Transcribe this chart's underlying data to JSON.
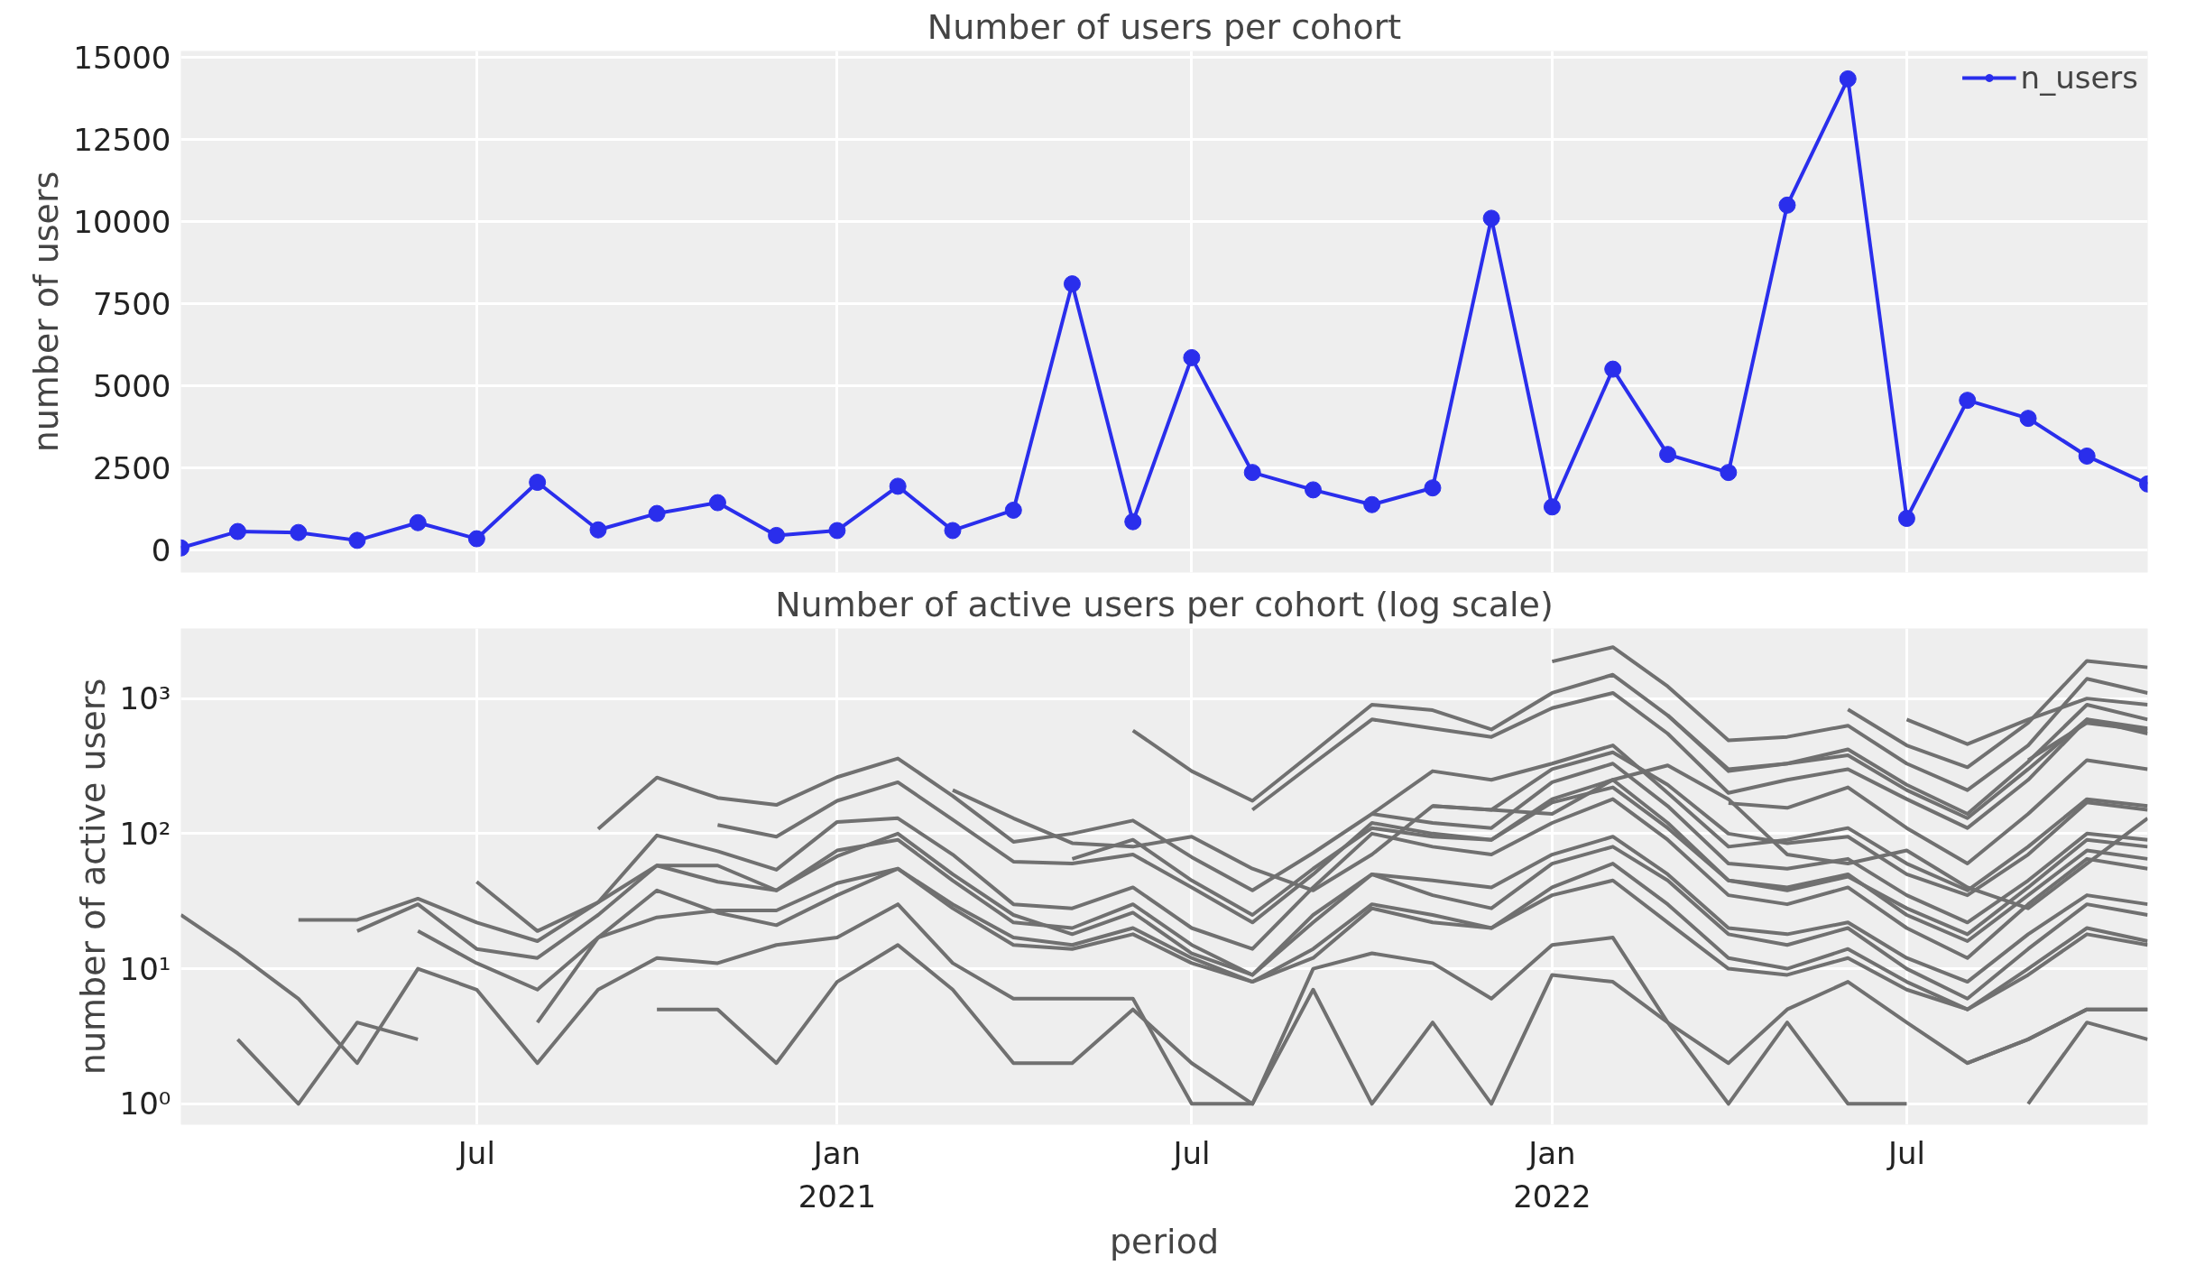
{
  "chart_data": [
    {
      "type": "line",
      "title": "Number of users per cohort",
      "ylabel": "number of users",
      "x": [
        "2020-02",
        "2020-03",
        "2020-04",
        "2020-05",
        "2020-06",
        "2020-07",
        "2020-08",
        "2020-09",
        "2020-10",
        "2020-11",
        "2020-12",
        "2021-01",
        "2021-02",
        "2021-03",
        "2021-04",
        "2021-05",
        "2021-06",
        "2021-07",
        "2021-08",
        "2021-09",
        "2021-10",
        "2021-11",
        "2021-12",
        "2022-01",
        "2022-02",
        "2022-03",
        "2022-04",
        "2022-05",
        "2022-06",
        "2022-07",
        "2022-08",
        "2022-09",
        "2022-10",
        "2022-11"
      ],
      "series": [
        {
          "name": "n_users",
          "color": "#2a2eec",
          "values": [
            50,
            550,
            520,
            280,
            820,
            330,
            2050,
            600,
            1100,
            1430,
            430,
            580,
            1930,
            580,
            1200,
            8100,
            850,
            5850,
            2350,
            1820,
            1370,
            1880,
            10100,
            1300,
            5500,
            2900,
            2350,
            10500,
            14350,
            950,
            4550,
            4000,
            2850,
            2000
          ]
        }
      ],
      "xlim": [
        "2020-02",
        "2022-11"
      ],
      "xticks": [
        {
          "value": "2020-07",
          "label": null
        },
        {
          "value": "2021-01",
          "label": null
        },
        {
          "value": "2021-07",
          "label": null
        },
        {
          "value": "2022-01",
          "label": null
        },
        {
          "value": "2022-07",
          "label": null
        }
      ],
      "ylim": [
        -700,
        15200
      ],
      "yticks": [
        0,
        2500,
        5000,
        7500,
        10000,
        12500,
        15000
      ],
      "tick_labels": "y",
      "grid": true,
      "legend": "top right",
      "marker": "circle",
      "line_style": "solid"
    },
    {
      "type": "line",
      "title": "Number of active users per cohort (log scale)",
      "xlabel": "period",
      "ylabel": "number of active users",
      "x": [
        "2020-02",
        "2020-03",
        "2020-04",
        "2020-05",
        "2020-06",
        "2020-07",
        "2020-08",
        "2020-09",
        "2020-10",
        "2020-11",
        "2020-12",
        "2021-01",
        "2021-02",
        "2021-03",
        "2021-04",
        "2021-05",
        "2021-06",
        "2021-07",
        "2021-08",
        "2021-09",
        "2021-10",
        "2021-11",
        "2021-12",
        "2022-01",
        "2022-02",
        "2022-03",
        "2022-04",
        "2022-05",
        "2022-06",
        "2022-07",
        "2022-08",
        "2022-09",
        "2022-10",
        "2022-11"
      ],
      "series": [
        {
          "color": "#707070",
          "values": [
            25,
            13,
            6,
            2,
            10,
            7,
            2,
            7,
            12,
            11,
            15,
            17,
            30,
            11,
            6,
            6,
            6,
            1,
            1,
            10,
            13,
            11,
            6,
            15,
            17,
            4,
            1,
            4,
            1,
            1,
            null,
            null,
            null,
            null
          ]
        },
        {
          "color": "#707070",
          "values": [
            null,
            3,
            1,
            4,
            3,
            null,
            null,
            null,
            null,
            null,
            null,
            null,
            null,
            null,
            null,
            null,
            null,
            null,
            null,
            null,
            null,
            null,
            null,
            null,
            null,
            null,
            null,
            null,
            null,
            null,
            null,
            null,
            null,
            null
          ]
        },
        {
          "color": "#707070",
          "values": [
            null,
            null,
            23,
            23,
            33,
            22,
            16,
            31,
            58,
            44,
            38,
            75,
            90,
            45,
            22,
            20,
            30,
            15,
            9,
            25,
            50,
            45,
            40,
            70,
            95,
            50,
            20,
            18,
            22,
            12,
            8,
            18,
            35,
            30
          ]
        },
        {
          "color": "#707070",
          "values": [
            null,
            null,
            null,
            19,
            30,
            14,
            12,
            25,
            58,
            58,
            38,
            68,
            100,
            50,
            25,
            18,
            26,
            13,
            9,
            22,
            50,
            35,
            28,
            60,
            80,
            45,
            18,
            15,
            20,
            10,
            6,
            14,
            30,
            25
          ]
        },
        {
          "color": "#707070",
          "values": [
            null,
            null,
            null,
            null,
            19,
            11,
            7,
            17,
            24,
            27,
            27,
            43,
            55,
            30,
            17,
            15,
            20,
            12,
            8,
            14,
            30,
            25,
            20,
            40,
            60,
            30,
            12,
            10,
            14,
            8,
            5,
            10,
            20,
            16
          ]
        },
        {
          "color": "#707070",
          "values": [
            null,
            null,
            null,
            null,
            null,
            44,
            19,
            31,
            97,
            74,
            54,
            122,
            130,
            70,
            30,
            28,
            40,
            20,
            14,
            40,
            100,
            80,
            70,
            120,
            180,
            90,
            35,
            30,
            40,
            20,
            12,
            30,
            65,
            55
          ]
        },
        {
          "color": "#707070",
          "values": [
            null,
            null,
            null,
            null,
            null,
            null,
            4,
            17,
            38,
            26,
            21,
            35,
            55,
            28,
            15,
            14,
            18,
            11,
            8,
            12,
            28,
            22,
            20,
            35,
            45,
            22,
            10,
            9,
            12,
            7,
            5,
            9,
            18,
            15
          ]
        },
        {
          "color": "#707070",
          "values": [
            null,
            null,
            null,
            null,
            null,
            null,
            null,
            108,
            260,
            184,
            163,
            262,
            360,
            190,
            87,
            100,
            125,
            67,
            38,
            72,
            140,
            120,
            110,
            240,
            330,
            160,
            60,
            55,
            65,
            35,
            22,
            45,
            100,
            90
          ]
        },
        {
          "color": "#707070",
          "values": [
            null,
            null,
            null,
            null,
            null,
            null,
            null,
            null,
            5,
            5,
            2,
            8,
            15,
            7,
            2,
            2,
            5,
            2,
            1,
            7,
            1,
            4,
            1,
            9,
            8,
            4,
            2,
            5,
            8,
            4,
            2,
            3,
            5,
            5
          ]
        },
        {
          "color": "#707070",
          "values": [
            null,
            null,
            null,
            null,
            null,
            null,
            null,
            null,
            null,
            116,
            95,
            175,
            240,
            127,
            62,
            60,
            70,
            40,
            22,
            50,
            120,
            100,
            90,
            180,
            250,
            120,
            45,
            40,
            50,
            25,
            16,
            35,
            75,
            65
          ]
        },
        {
          "color": "#707070",
          "values": [
            null,
            null,
            null,
            null,
            null,
            null,
            null,
            null,
            null,
            null,
            null,
            null,
            null,
            210,
            130,
            85,
            80,
            95,
            55,
            38,
            70,
            160,
            150,
            140,
            250,
            320,
            180,
            70,
            60,
            75,
            40,
            28,
            60,
            130
          ]
        },
        {
          "color": "#707070",
          "values": [
            null,
            null,
            null,
            null,
            null,
            null,
            null,
            null,
            null,
            null,
            null,
            null,
            null,
            null,
            null,
            65,
            90,
            45,
            25,
            55,
            110,
            95,
            90,
            170,
            220,
            110,
            45,
            38,
            48,
            28,
            18,
            40,
            90,
            80
          ]
        },
        {
          "color": "#707070",
          "values": [
            null,
            null,
            null,
            null,
            null,
            null,
            null,
            null,
            null,
            null,
            null,
            null,
            null,
            null,
            null,
            null,
            580,
            290,
            175,
            400,
            900,
            820,
            590,
            1100,
            1500,
            750,
            300,
            330,
            420,
            230,
            140,
            340,
            900,
            700
          ]
        },
        {
          "color": "#707070",
          "values": [
            null,
            null,
            null,
            null,
            null,
            null,
            null,
            null,
            null,
            null,
            null,
            null,
            null,
            null,
            null,
            null,
            null,
            null,
            150,
            330,
            700,
            600,
            520,
            850,
            1100,
            550,
            200,
            250,
            300,
            180,
            110,
            250,
            700,
            550
          ]
        },
        {
          "color": "#707070",
          "values": [
            null,
            null,
            null,
            null,
            null,
            null,
            null,
            null,
            null,
            null,
            null,
            null,
            null,
            null,
            null,
            null,
            null,
            null,
            null,
            null,
            140,
            290,
            250,
            330,
            450,
            200,
            80,
            90,
            110,
            60,
            38,
            80,
            180,
            160
          ]
        },
        {
          "color": "#707070",
          "values": [
            null,
            null,
            null,
            null,
            null,
            null,
            null,
            null,
            null,
            null,
            null,
            null,
            null,
            null,
            null,
            null,
            null,
            null,
            null,
            null,
            null,
            160,
            150,
            300,
            400,
            230,
            100,
            85,
            95,
            50,
            35,
            70,
            170,
            150
          ]
        },
        {
          "color": "#707070",
          "values": [
            null,
            null,
            null,
            null,
            null,
            null,
            null,
            null,
            null,
            null,
            null,
            null,
            null,
            null,
            null,
            null,
            null,
            null,
            null,
            null,
            null,
            null,
            null,
            1880,
            2400,
            1230,
            490,
            520,
            630,
            330,
            210,
            450,
            1400,
            1100
          ]
        },
        {
          "color": "#707070",
          "values": [
            null,
            null,
            null,
            null,
            null,
            null,
            null,
            null,
            null,
            null,
            null,
            null,
            null,
            null,
            null,
            null,
            null,
            null,
            null,
            null,
            null,
            null,
            null,
            null,
            null,
            750,
            290,
            330,
            380,
            210,
            130,
            300,
            700,
            600
          ]
        },
        {
          "color": "#707070",
          "values": [
            null,
            null,
            null,
            null,
            null,
            null,
            null,
            null,
            null,
            null,
            null,
            null,
            null,
            null,
            null,
            null,
            null,
            null,
            null,
            null,
            null,
            null,
            null,
            null,
            null,
            null,
            168,
            155,
            220,
            110,
            60,
            140,
            350,
            300
          ]
        },
        {
          "color": "#707070",
          "values": [
            null,
            null,
            null,
            null,
            null,
            null,
            null,
            null,
            null,
            null,
            null,
            null,
            null,
            null,
            null,
            null,
            null,
            null,
            null,
            null,
            null,
            null,
            null,
            null,
            null,
            null,
            null,
            null,
            830,
            450,
            310,
            660,
            1900,
            1700
          ]
        },
        {
          "color": "#707070",
          "values": [
            null,
            null,
            null,
            null,
            null,
            null,
            null,
            null,
            null,
            null,
            null,
            null,
            null,
            null,
            null,
            null,
            null,
            null,
            null,
            null,
            null,
            null,
            null,
            null,
            null,
            null,
            null,
            null,
            null,
            700,
            460,
            700,
            1000,
            900
          ]
        },
        {
          "color": "#707070",
          "values": [
            null,
            null,
            null,
            null,
            null,
            null,
            null,
            null,
            null,
            null,
            null,
            null,
            null,
            null,
            null,
            null,
            null,
            null,
            null,
            null,
            null,
            null,
            null,
            null,
            null,
            null,
            null,
            null,
            null,
            null,
            2,
            3,
            5,
            5
          ]
        },
        {
          "color": "#707070",
          "values": [
            null,
            null,
            null,
            null,
            null,
            null,
            null,
            null,
            null,
            null,
            null,
            null,
            null,
            null,
            null,
            null,
            null,
            null,
            null,
            null,
            null,
            null,
            null,
            null,
            null,
            null,
            null,
            null,
            null,
            null,
            null,
            350,
            660,
            580
          ]
        },
        {
          "color": "#707070",
          "values": [
            null,
            null,
            null,
            null,
            null,
            null,
            null,
            null,
            null,
            null,
            null,
            null,
            null,
            null,
            null,
            null,
            null,
            null,
            null,
            null,
            null,
            null,
            null,
            null,
            null,
            null,
            null,
            null,
            null,
            null,
            null,
            1,
            4,
            3
          ]
        }
      ],
      "xlim": [
        "2020-02",
        "2022-11"
      ],
      "xticks": [
        {
          "value": "2020-07",
          "label": "Jul"
        },
        {
          "value": "2021-01",
          "label": "Jan\n2021"
        },
        {
          "value": "2021-07",
          "label": "Jul"
        },
        {
          "value": "2022-01",
          "label": "Jan\n2022"
        },
        {
          "value": "2022-07",
          "label": "Jul"
        }
      ],
      "log": true,
      "ylim": [
        0.7,
        3300
      ],
      "yticks": [
        {
          "value": 1,
          "label": "10⁰"
        },
        {
          "value": 10,
          "label": "10¹"
        },
        {
          "value": 100,
          "label": "10²"
        },
        {
          "value": 1000,
          "label": "10³"
        }
      ],
      "grid": true,
      "line_style": "solid"
    }
  ]
}
